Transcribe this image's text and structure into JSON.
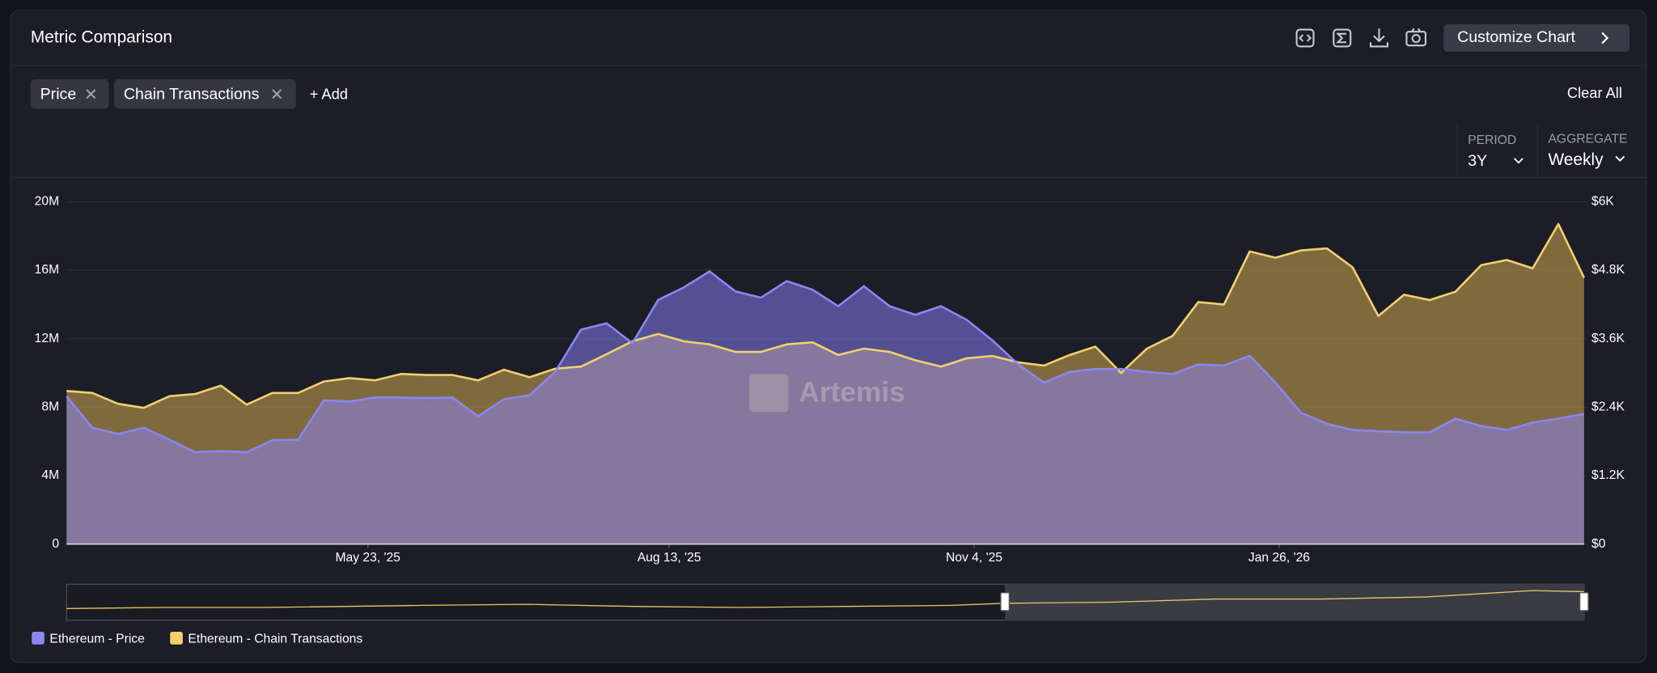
{
  "header": {
    "title": "Metric Comparison",
    "button": "Customize Chart"
  },
  "filters": {
    "chips": [
      "Price",
      "Chain Transactions"
    ],
    "add": "+ Add",
    "clear": "Clear All"
  },
  "controls": {
    "period_label": "PERIOD",
    "period_value": "3Y",
    "aggregate_label": "AGGREGATE",
    "aggregate_value": "Weekly"
  },
  "watermark": "Artemis",
  "chart_data": {
    "type": "area",
    "x": [
      "2025-03-02",
      "2025-03-09",
      "2025-03-16",
      "2025-03-23",
      "2025-03-30",
      "2025-04-06",
      "2025-04-13",
      "2025-04-20",
      "2025-04-27",
      "2025-05-04",
      "2025-05-11",
      "2025-05-18",
      "2025-05-25",
      "2025-06-01",
      "2025-06-08",
      "2025-06-15",
      "2025-06-22",
      "2025-06-29",
      "2025-07-06",
      "2025-07-13",
      "2025-07-20",
      "2025-07-27",
      "2025-08-03",
      "2025-08-10",
      "2025-08-17",
      "2025-08-24",
      "2025-08-31",
      "2025-09-07",
      "2025-09-14",
      "2025-09-21",
      "2025-09-28",
      "2025-10-05",
      "2025-10-12",
      "2025-10-19",
      "2025-10-26",
      "2025-11-02",
      "2025-11-09",
      "2025-11-16",
      "2025-11-23",
      "2025-11-30",
      "2025-12-07",
      "2025-12-14",
      "2025-12-21",
      "2025-12-28",
      "2026-01-04",
      "2026-01-11",
      "2026-01-18",
      "2026-01-25",
      "2026-02-01",
      "2026-02-08",
      "2026-02-15",
      "2026-02-22",
      "2026-03-01",
      "2026-03-08",
      "2026-03-15",
      "2026-03-22",
      "2026-03-29",
      "2026-04-05",
      "2026-04-12",
      "2026-04-19"
    ],
    "xlim": [
      "2025-03-02",
      "2026-04-19"
    ],
    "xticks": [
      {
        "value": "2025-05-23",
        "label": "May 23, '25"
      },
      {
        "value": "2025-08-13",
        "label": "Aug 13, '25"
      },
      {
        "value": "2025-11-04",
        "label": "Nov 4, '25"
      },
      {
        "value": "2026-01-26",
        "label": "Jan 26, '26"
      }
    ],
    "ylim": [
      0,
      20000000
    ],
    "yticks": [
      0,
      {
        "value": 4000000,
        "label": "4M"
      },
      {
        "value": 8000000,
        "label": "8M"
      },
      {
        "value": 12000000,
        "label": "12M"
      },
      {
        "value": 16000000,
        "label": "16M"
      },
      {
        "value": 20000000,
        "label": "20M"
      }
    ],
    "y2lim": [
      0,
      6000
    ],
    "y2ticks": [
      {
        "value": 0,
        "label": "$0"
      },
      {
        "value": 1200,
        "label": "$1.2K"
      },
      {
        "value": 2400,
        "label": "$2.4K"
      },
      {
        "value": 3600,
        "label": "$3.6K"
      },
      {
        "value": 4800,
        "label": "$4.8K"
      },
      {
        "value": 6000,
        "label": "$6K"
      }
    ],
    "grid": true,
    "legend": "bottom-left",
    "series": [
      {
        "name": "Ethereum - Price",
        "color": "#8b86f2",
        "axis": "y2",
        "values": [
          2590,
          2040,
          1930,
          2040,
          1830,
          1610,
          1630,
          1610,
          1820,
          1830,
          2520,
          2500,
          2570,
          2570,
          2560,
          2570,
          2240,
          2540,
          2610,
          3020,
          3760,
          3870,
          3520,
          4280,
          4500,
          4780,
          4430,
          4320,
          4610,
          4460,
          4170,
          4520,
          4170,
          4020,
          4170,
          3930,
          3570,
          3150,
          2830,
          3020,
          3070,
          3070,
          3020,
          2980,
          3150,
          3130,
          3300,
          2830,
          2300,
          2110,
          2000,
          1980,
          1960,
          1960,
          2200,
          2070,
          2000,
          2130,
          2200,
          2280
        ]
      },
      {
        "name": "Ethereum - Chain Transactions",
        "color": "#f2d06e",
        "values": [
          8950000,
          8830000,
          8200000,
          7960000,
          8640000,
          8770000,
          9260000,
          8150000,
          8830000,
          8830000,
          9500000,
          9700000,
          9570000,
          9940000,
          9880000,
          9880000,
          9570000,
          10190000,
          9750000,
          10250000,
          10370000,
          11100000,
          11850000,
          12280000,
          11850000,
          11670000,
          11230000,
          11230000,
          11670000,
          11790000,
          11050000,
          11420000,
          11230000,
          10740000,
          10370000,
          10860000,
          10990000,
          10620000,
          10430000,
          11050000,
          11540000,
          10000000,
          11420000,
          12160000,
          14140000,
          14000000,
          17100000,
          16730000,
          17160000,
          17280000,
          16170000,
          13330000,
          14570000,
          14260000,
          14750000,
          16300000,
          16600000,
          16110000,
          18700000,
          15560000
        ]
      }
    ]
  }
}
